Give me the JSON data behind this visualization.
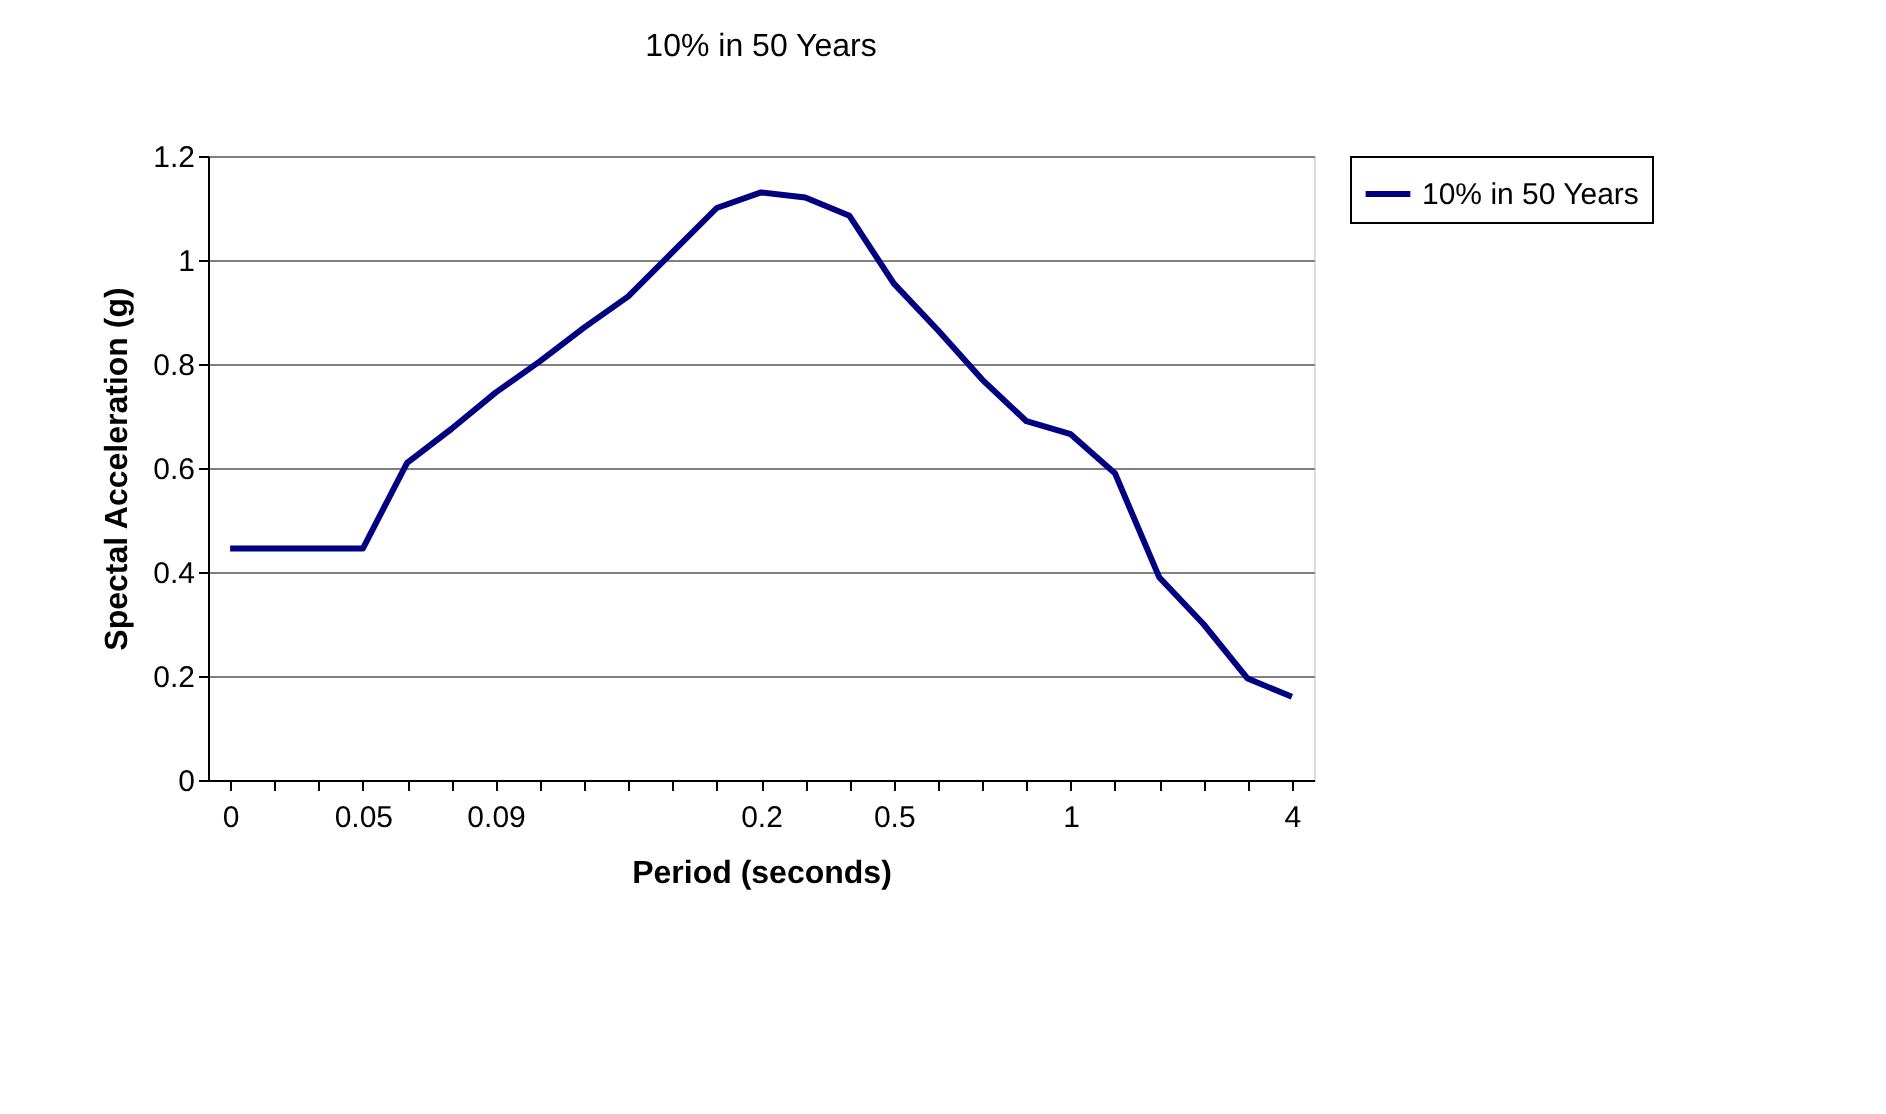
{
  "chart_data": {
    "type": "line",
    "title": "10% in 50 Years",
    "xlabel": "Period (seconds)",
    "ylabel": "Spectal Acceleration (g)",
    "categories": [
      "0",
      null,
      null,
      "0.05",
      null,
      null,
      "0.09",
      null,
      null,
      null,
      null,
      null,
      "0.2",
      null,
      null,
      "0.5",
      null,
      null,
      null,
      "1",
      null,
      null,
      null,
      null,
      "4"
    ],
    "series": [
      {
        "name": "10% in 50 Years",
        "color": "#000080",
        "values": [
          0.445,
          0.445,
          0.445,
          0.445,
          0.61,
          0.675,
          0.745,
          0.805,
          0.87,
          0.93,
          1.015,
          1.1,
          1.13,
          1.12,
          1.085,
          0.955,
          0.865,
          0.77,
          0.69,
          0.665,
          0.59,
          0.39,
          0.3,
          0.195,
          0.16
        ]
      }
    ],
    "ylim": [
      0,
      1.2
    ],
    "yticks": [
      0,
      0.2,
      0.4,
      0.6,
      0.8,
      1,
      1.2
    ],
    "grid": "y",
    "legend": "right",
    "marker": "none",
    "line_style": "solid"
  }
}
